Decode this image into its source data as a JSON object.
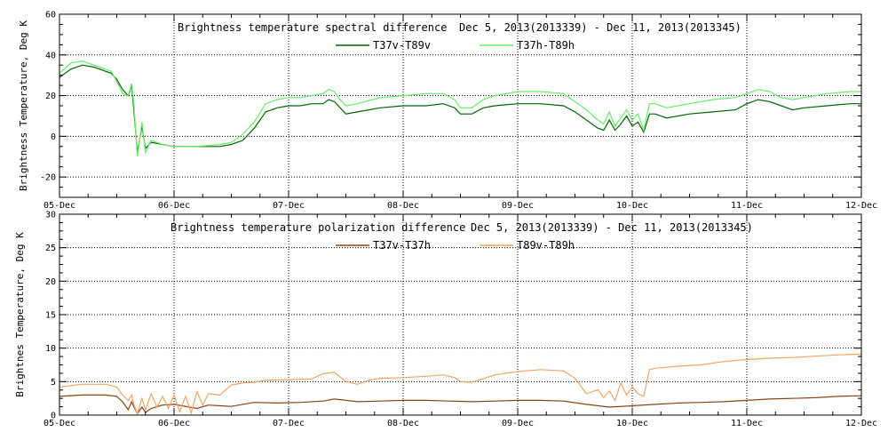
{
  "chart_data": [
    {
      "type": "line",
      "title": "Brightness temperature spectral difference",
      "date_range": "Dec  5, 2013(2013339) - Dec 11, 2013(2013345)",
      "xlabel": "",
      "ylabel": "Brightness Temperature, Deg K",
      "xlim": [
        0,
        7
      ],
      "ylim": [
        -30,
        60
      ],
      "yticks": [
        -20,
        0,
        20,
        40,
        60
      ],
      "xtick_labels": [
        "05-Dec",
        "06-Dec",
        "07-Dec",
        "08-Dec",
        "09-Dec",
        "10-Dec",
        "11-Dec",
        "12-Dec"
      ],
      "grid": true,
      "series": [
        {
          "name": "T37v-T89v",
          "color": "#006400",
          "points": [
            [
              0,
              29
            ],
            [
              0.1,
              33
            ],
            [
              0.2,
              35
            ],
            [
              0.3,
              34
            ],
            [
              0.35,
              33
            ],
            [
              0.45,
              31
            ],
            [
              0.5,
              28
            ],
            [
              0.55,
              23
            ],
            [
              0.6,
              20
            ],
            [
              0.63,
              25
            ],
            [
              0.65,
              12
            ],
            [
              0.68,
              -8
            ],
            [
              0.72,
              5
            ],
            [
              0.75,
              -6
            ],
            [
              0.8,
              -3
            ],
            [
              0.9,
              -4
            ],
            [
              1.0,
              -5
            ],
            [
              1.2,
              -5
            ],
            [
              1.4,
              -5
            ],
            [
              1.5,
              -4
            ],
            [
              1.6,
              -2
            ],
            [
              1.7,
              4
            ],
            [
              1.8,
              12
            ],
            [
              1.9,
              14
            ],
            [
              2.0,
              15
            ],
            [
              2.1,
              15
            ],
            [
              2.2,
              16
            ],
            [
              2.3,
              16
            ],
            [
              2.35,
              18
            ],
            [
              2.4,
              17
            ],
            [
              2.45,
              14
            ],
            [
              2.5,
              11
            ],
            [
              2.6,
              12
            ],
            [
              2.8,
              14
            ],
            [
              3.0,
              15
            ],
            [
              3.2,
              15
            ],
            [
              3.35,
              16
            ],
            [
              3.45,
              14
            ],
            [
              3.5,
              11
            ],
            [
              3.6,
              11
            ],
            [
              3.7,
              14
            ],
            [
              3.8,
              15
            ],
            [
              4.0,
              16
            ],
            [
              4.2,
              16
            ],
            [
              4.4,
              15
            ],
            [
              4.5,
              12
            ],
            [
              4.6,
              8
            ],
            [
              4.7,
              4
            ],
            [
              4.75,
              3
            ],
            [
              4.8,
              8
            ],
            [
              4.85,
              3
            ],
            [
              4.9,
              6
            ],
            [
              4.95,
              10
            ],
            [
              5.0,
              5
            ],
            [
              5.05,
              7
            ],
            [
              5.1,
              2
            ],
            [
              5.15,
              11
            ],
            [
              5.2,
              11
            ],
            [
              5.3,
              9
            ],
            [
              5.5,
              11
            ],
            [
              5.7,
              12
            ],
            [
              5.9,
              13
            ],
            [
              6.0,
              16
            ],
            [
              6.1,
              18
            ],
            [
              6.2,
              17
            ],
            [
              6.3,
              15
            ],
            [
              6.4,
              13
            ],
            [
              6.5,
              14
            ],
            [
              6.7,
              15
            ],
            [
              6.9,
              16
            ],
            [
              7.0,
              16
            ]
          ]
        },
        {
          "name": "T37h-T89h",
          "color": "#66ee66",
          "points": [
            [
              0,
              31
            ],
            [
              0.1,
              36
            ],
            [
              0.2,
              37
            ],
            [
              0.3,
              35
            ],
            [
              0.35,
              34
            ],
            [
              0.45,
              32
            ],
            [
              0.5,
              27
            ],
            [
              0.55,
              21
            ],
            [
              0.6,
              20
            ],
            [
              0.63,
              26
            ],
            [
              0.65,
              15
            ],
            [
              0.68,
              -10
            ],
            [
              0.72,
              7
            ],
            [
              0.75,
              -8
            ],
            [
              0.8,
              -2
            ],
            [
              0.9,
              -4
            ],
            [
              1.0,
              -5
            ],
            [
              1.2,
              -5
            ],
            [
              1.4,
              -4
            ],
            [
              1.5,
              -3
            ],
            [
              1.6,
              1
            ],
            [
              1.7,
              7
            ],
            [
              1.8,
              16
            ],
            [
              1.9,
              18
            ],
            [
              2.0,
              19
            ],
            [
              2.1,
              19
            ],
            [
              2.2,
              20
            ],
            [
              2.3,
              21
            ],
            [
              2.35,
              23
            ],
            [
              2.4,
              22
            ],
            [
              2.45,
              18
            ],
            [
              2.5,
              15
            ],
            [
              2.6,
              16
            ],
            [
              2.8,
              19
            ],
            [
              3.0,
              20
            ],
            [
              3.2,
              21
            ],
            [
              3.35,
              21
            ],
            [
              3.45,
              18
            ],
            [
              3.5,
              14
            ],
            [
              3.6,
              14
            ],
            [
              3.7,
              18
            ],
            [
              3.8,
              20
            ],
            [
              4.0,
              22
            ],
            [
              4.2,
              22
            ],
            [
              4.4,
              21
            ],
            [
              4.5,
              17
            ],
            [
              4.6,
              13
            ],
            [
              4.7,
              8
            ],
            [
              4.75,
              6
            ],
            [
              4.8,
              12
            ],
            [
              4.85,
              5
            ],
            [
              4.9,
              9
            ],
            [
              4.95,
              13
            ],
            [
              5.0,
              8
            ],
            [
              5.05,
              11
            ],
            [
              5.1,
              3
            ],
            [
              5.15,
              16
            ],
            [
              5.2,
              16
            ],
            [
              5.3,
              14
            ],
            [
              5.5,
              16
            ],
            [
              5.7,
              18
            ],
            [
              5.9,
              19
            ],
            [
              6.0,
              21
            ],
            [
              6.1,
              23
            ],
            [
              6.2,
              22
            ],
            [
              6.3,
              19
            ],
            [
              6.4,
              18
            ],
            [
              6.5,
              19
            ],
            [
              6.7,
              21
            ],
            [
              6.9,
              22
            ],
            [
              7.0,
              22
            ]
          ]
        }
      ]
    },
    {
      "type": "line",
      "title": "Brightness temperature polarization difference",
      "date_range": "Dec  5, 2013(2013339) - Dec 11, 2013(2013345)",
      "xlabel": "",
      "ylabel": "Brightnes Temperature, Deg K",
      "xlim": [
        0,
        7
      ],
      "ylim": [
        0,
        30
      ],
      "yticks": [
        0,
        5,
        10,
        15,
        20,
        25,
        30
      ],
      "xtick_labels": [
        "05-Dec",
        "06-Dec",
        "07-Dec",
        "08-Dec",
        "09-Dec",
        "10-Dec",
        "11-Dec",
        "12-Dec"
      ],
      "grid": true,
      "series": [
        {
          "name": "T37v-T37h",
          "color": "#8b4513",
          "points": [
            [
              0,
              2.8
            ],
            [
              0.2,
              3.0
            ],
            [
              0.4,
              3.0
            ],
            [
              0.5,
              2.8
            ],
            [
              0.55,
              2.0
            ],
            [
              0.6,
              0.8
            ],
            [
              0.63,
              2.0
            ],
            [
              0.65,
              1.2
            ],
            [
              0.68,
              0.2
            ],
            [
              0.72,
              1.2
            ],
            [
              0.75,
              0.4
            ],
            [
              0.8,
              1.0
            ],
            [
              0.9,
              1.5
            ],
            [
              1.0,
              1.6
            ],
            [
              1.1,
              1.3
            ],
            [
              1.2,
              1.0
            ],
            [
              1.3,
              1.5
            ],
            [
              1.4,
              1.4
            ],
            [
              1.5,
              1.3
            ],
            [
              1.7,
              1.9
            ],
            [
              1.9,
              1.8
            ],
            [
              2.1,
              1.9
            ],
            [
              2.3,
              2.1
            ],
            [
              2.4,
              2.4
            ],
            [
              2.6,
              2.0
            ],
            [
              2.8,
              2.1
            ],
            [
              3.0,
              2.2
            ],
            [
              3.2,
              2.2
            ],
            [
              3.4,
              2.1
            ],
            [
              3.6,
              2.0
            ],
            [
              3.8,
              2.1
            ],
            [
              4.0,
              2.2
            ],
            [
              4.2,
              2.2
            ],
            [
              4.4,
              2.1
            ],
            [
              4.6,
              1.6
            ],
            [
              4.8,
              1.2
            ],
            [
              5.0,
              1.4
            ],
            [
              5.2,
              1.6
            ],
            [
              5.4,
              1.8
            ],
            [
              5.6,
              1.9
            ],
            [
              5.8,
              2.0
            ],
            [
              6.0,
              2.2
            ],
            [
              6.2,
              2.4
            ],
            [
              6.4,
              2.5
            ],
            [
              6.6,
              2.6
            ],
            [
              6.8,
              2.8
            ],
            [
              7.0,
              2.9
            ]
          ]
        },
        {
          "name": "T89v-T89h",
          "color": "#f4a460",
          "points": [
            [
              0,
              4.2
            ],
            [
              0.2,
              4.6
            ],
            [
              0.4,
              4.6
            ],
            [
              0.5,
              4.2
            ],
            [
              0.55,
              3.0
            ],
            [
              0.6,
              2.2
            ],
            [
              0.63,
              3.0
            ],
            [
              0.65,
              1.5
            ],
            [
              0.68,
              0.2
            ],
            [
              0.72,
              2.5
            ],
            [
              0.75,
              0.8
            ],
            [
              0.8,
              3.2
            ],
            [
              0.85,
              1.2
            ],
            [
              0.9,
              2.8
            ],
            [
              0.95,
              1.0
            ],
            [
              1.0,
              3.0
            ],
            [
              1.05,
              0.5
            ],
            [
              1.1,
              2.8
            ],
            [
              1.15,
              0.3
            ],
            [
              1.2,
              3.5
            ],
            [
              1.25,
              1.5
            ],
            [
              1.3,
              3.2
            ],
            [
              1.4,
              3.0
            ],
            [
              1.5,
              4.5
            ],
            [
              1.6,
              4.8
            ],
            [
              1.7,
              4.9
            ],
            [
              1.8,
              5.2
            ],
            [
              2.0,
              5.3
            ],
            [
              2.2,
              5.4
            ],
            [
              2.3,
              6.2
            ],
            [
              2.4,
              6.4
            ],
            [
              2.5,
              5.0
            ],
            [
              2.6,
              4.6
            ],
            [
              2.7,
              5.2
            ],
            [
              2.8,
              5.5
            ],
            [
              3.0,
              5.6
            ],
            [
              3.2,
              5.8
            ],
            [
              3.35,
              6.0
            ],
            [
              3.45,
              5.6
            ],
            [
              3.5,
              5.0
            ],
            [
              3.6,
              4.9
            ],
            [
              3.8,
              6.0
            ],
            [
              4.0,
              6.5
            ],
            [
              4.2,
              6.8
            ],
            [
              4.4,
              6.6
            ],
            [
              4.5,
              5.5
            ],
            [
              4.6,
              3.2
            ],
            [
              4.7,
              3.8
            ],
            [
              4.75,
              2.6
            ],
            [
              4.8,
              3.6
            ],
            [
              4.85,
              2.2
            ],
            [
              4.9,
              4.8
            ],
            [
              4.95,
              3.0
            ],
            [
              5.0,
              4.2
            ],
            [
              5.05,
              3.2
            ],
            [
              5.1,
              2.8
            ],
            [
              5.15,
              6.8
            ],
            [
              5.2,
              7.0
            ],
            [
              5.4,
              7.3
            ],
            [
              5.6,
              7.5
            ],
            [
              5.8,
              8.0
            ],
            [
              6.0,
              8.3
            ],
            [
              6.2,
              8.5
            ],
            [
              6.4,
              8.6
            ],
            [
              6.6,
              8.8
            ],
            [
              6.8,
              9.0
            ],
            [
              7.0,
              9.1
            ]
          ]
        }
      ]
    }
  ]
}
